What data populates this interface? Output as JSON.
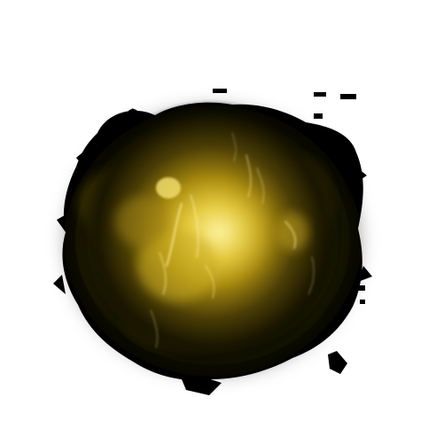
{
  "image": {
    "subject": "glowing-energy-burst",
    "colors": {
      "background": "#ffffff",
      "core": "#f2df5a",
      "glow": "#c9a818",
      "mid": "#6b5a08",
      "smoke": "#1c1800",
      "edge": "#000000"
    }
  }
}
